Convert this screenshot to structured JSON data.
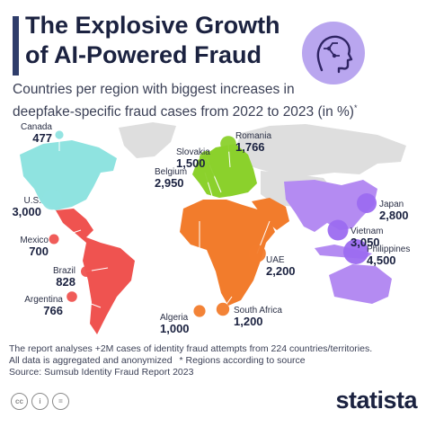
{
  "header": {
    "title_line1": "The Explosive Growth",
    "title_line2": "of AI-Powered Fraud",
    "subtitle_line1": "Countries per region with biggest increases in",
    "subtitle_line2": "deepfake-specific fraud cases from 2022 to 2023 (in %)",
    "subtitle_mark": "*"
  },
  "chart_data": {
    "type": "scatter",
    "title": "The Explosive Growth of AI-Powered Fraud",
    "subtitle": "Countries per region with biggest increases in deepfake-specific fraud cases from 2022 to 2023 (in %)*",
    "unit": "%",
    "region_colors": {
      "North America": "#8fe3e0",
      "Latin America": "#ef5350",
      "Europe": "#8bd12c",
      "Africa": "#f27c2c",
      "Middle East": "#f27c2c",
      "Asia-Pacific": "#9c6bf0"
    },
    "points": [
      {
        "country": "Canada",
        "value": 477,
        "label": "477",
        "color": "#8fe3e0"
      },
      {
        "country": "U.S.",
        "value": 3000,
        "label": "3,000",
        "color": "#8fe3e0"
      },
      {
        "country": "Mexico",
        "value": 700,
        "label": "700",
        "color": "#ef5350"
      },
      {
        "country": "Brazil",
        "value": 828,
        "label": "828",
        "color": "#ef5350"
      },
      {
        "country": "Argentina",
        "value": 766,
        "label": "766",
        "color": "#ef5350"
      },
      {
        "country": "Romania",
        "value": 1766,
        "label": "1,766",
        "color": "#8bd12c"
      },
      {
        "country": "Slovakia",
        "value": 1500,
        "label": "1,500",
        "color": "#8bd12c"
      },
      {
        "country": "Belgium",
        "value": 2950,
        "label": "2,950",
        "color": "#8bd12c"
      },
      {
        "country": "Algeria",
        "value": 1000,
        "label": "1,000",
        "color": "#f27c2c"
      },
      {
        "country": "South Africa",
        "value": 1200,
        "label": "1,200",
        "color": "#f27c2c"
      },
      {
        "country": "UAE",
        "value": 2200,
        "label": "2,200",
        "color": "#f27c2c"
      },
      {
        "country": "Japan",
        "value": 2800,
        "label": "2,800",
        "color": "#9c6bf0"
      },
      {
        "country": "Vietnam",
        "value": 3050,
        "label": "3,050",
        "color": "#9c6bf0"
      },
      {
        "country": "Philippines",
        "value": 4500,
        "label": "4,500",
        "color": "#9c6bf0"
      }
    ]
  },
  "footer": {
    "note_line1": "The report analyses +2M cases of identity fraud attempts from 224 countries/territories.",
    "note_line2": "All data is aggregated and anonymized",
    "note_line2b": "* Regions according to source",
    "source": "Source: Sumsub Identity Fraud Report 2023",
    "brand": "statista",
    "license_icons": [
      "cc-icon",
      "by-icon",
      "nd-icon"
    ]
  }
}
